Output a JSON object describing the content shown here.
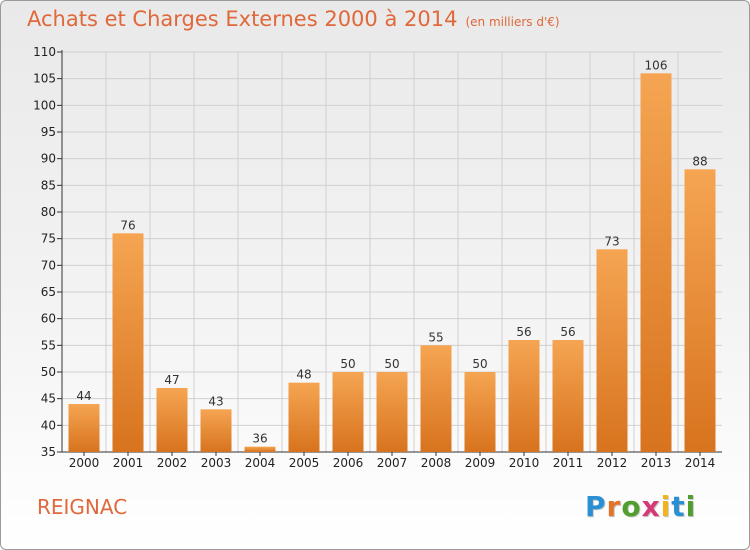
{
  "header": {
    "title": "Achats et Charges Externes 2000 à 2014",
    "subtitle": "(en milliers d'€)"
  },
  "footer": {
    "city": "REIGNAC",
    "logo_text": "Proxiti"
  },
  "colors": {
    "title": "#e0683a",
    "bar_top": "#f5a552",
    "bar_bottom": "#d8731e"
  },
  "chart_data": {
    "type": "bar",
    "title": "Achats et Charges Externes 2000 à 2014",
    "subtitle": "(en milliers d'€)",
    "categories": [
      "2000",
      "2001",
      "2002",
      "2003",
      "2004",
      "2005",
      "2006",
      "2007",
      "2008",
      "2009",
      "2010",
      "2011",
      "2012",
      "2013",
      "2014"
    ],
    "values": [
      44,
      76,
      47,
      43,
      36,
      48,
      50,
      50,
      55,
      50,
      56,
      56,
      73,
      106,
      88
    ],
    "ylim": [
      35,
      110
    ],
    "yticks": [
      35,
      40,
      45,
      50,
      55,
      60,
      65,
      70,
      75,
      80,
      85,
      90,
      95,
      100,
      105,
      110
    ],
    "grid": true,
    "data_labels": true
  }
}
